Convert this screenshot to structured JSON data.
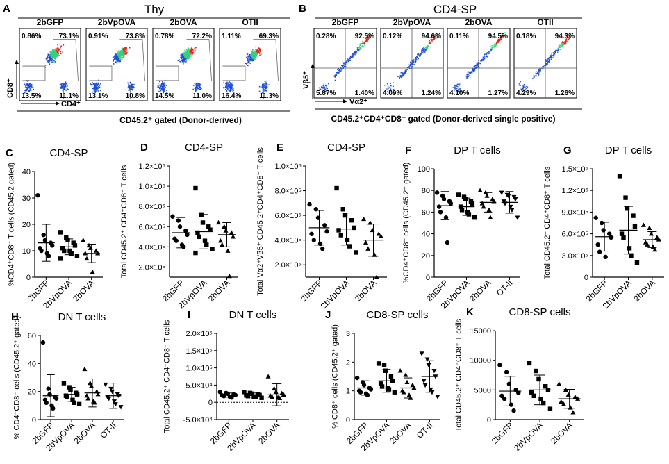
{
  "figure": {
    "panel_A": {
      "letter": "A",
      "title": "Thy",
      "gate": "CD45.2⁺ gated (Donor-derived)",
      "y_axis_label": "CD8⁺",
      "x_axis_label": "CD4⁺",
      "plots": [
        {
          "name": "2bGFP",
          "tl": "0.86%",
          "tr": "73.1%",
          "bl": "13.5%",
          "br": "11.1%"
        },
        {
          "name": "2bVpOVA",
          "tl": "0.91%",
          "tr": "73.8%",
          "bl": "13.1%",
          "br": "10.8%"
        },
        {
          "name": "2bOVA",
          "tl": "0.78%",
          "tr": "72.2%",
          "bl": "14.5%",
          "br": "11.0%"
        },
        {
          "name": "OTII",
          "tl": "1.11%",
          "tr": "69.3%",
          "bl": "16.4%",
          "br": "11.3%"
        }
      ]
    },
    "panel_B": {
      "letter": "B",
      "title": "CD4-SP",
      "gate": "CD45.2⁺CD4⁺CD8⁻ gated (Donor-derived single positive)",
      "y_axis_label": "Vβ5⁺",
      "x_axis_label": "Vα2⁺",
      "plots": [
        {
          "name": "2bGFP",
          "tl": "0.28%",
          "tr": "92.5%",
          "bl": "5.87%",
          "br": "1.40%"
        },
        {
          "name": "2bVpOVA",
          "tl": "0.12%",
          "tr": "94.6%",
          "bl": "4.09%",
          "br": "1.24%"
        },
        {
          "name": "2bOVA",
          "tl": "0.11%",
          "tr": "94.5%",
          "bl": "4.10%",
          "br": "1.27%"
        },
        {
          "name": "OTII",
          "tl": "0.18%",
          "tr": "94.3%",
          "bl": "4.29%",
          "br": "1.26%"
        }
      ]
    }
  },
  "colors": {
    "flow_hot": "#e8201a",
    "flow_mid": "#35d07a",
    "flow_cold": "#1f4fd8",
    "ink": "#000000"
  },
  "chart_data": [
    {
      "letter": "C",
      "type": "scatter",
      "title": "CD4-SP",
      "ylabel": "%CD4⁺CD8⁻ T cells (CD45.2 gated)",
      "ylim": [
        0,
        40
      ],
      "ticks": [
        "0",
        "10",
        "20",
        "30",
        "40"
      ],
      "tick_values": [
        0,
        10,
        20,
        30,
        40
      ],
      "categories": [
        "2bGFP",
        "2bVpOVA",
        "2bOVA"
      ],
      "markers": [
        "circle",
        "square",
        "triangle"
      ],
      "series": [
        {
          "name": "2bGFP",
          "values": [
            31,
            16,
            14,
            13,
            12,
            11,
            10,
            9,
            8
          ],
          "mean": 13,
          "sd": 7
        },
        {
          "name": "2bVpOVA",
          "values": [
            17,
            15,
            14,
            13,
            12,
            11,
            10,
            10,
            9,
            8,
            7
          ],
          "mean": 11.5,
          "sd": 3
        },
        {
          "name": "2bOVA",
          "values": [
            14,
            12,
            11,
            10,
            9,
            9,
            7,
            2
          ],
          "mean": 9,
          "sd": 3.5
        }
      ]
    },
    {
      "letter": "D",
      "type": "scatter",
      "title": "CD4-SP",
      "ylabel": "Total CD45.2⁺ CD4⁺CD8⁻ T cells",
      "ylim": [
        100000,
        1200000
      ],
      "ticks": [
        "2.0×10⁵",
        "4.0×10⁵",
        "6.0×10⁵",
        "8.0×10⁵",
        "1.0×10⁶",
        "1.2×10⁶"
      ],
      "tick_values": [
        200000,
        400000,
        600000,
        800000,
        1000000,
        1200000
      ],
      "categories": [
        "2bGFP",
        "2bVpOVA",
        "2bOVA"
      ],
      "markers": [
        "circle",
        "square",
        "triangle"
      ],
      "series": [
        {
          "name": "2bGFP",
          "values": [
            700000,
            660000,
            600000,
            560000,
            520000,
            480000,
            460000,
            420000,
            400000
          ],
          "mean": 540000,
          "sd": 150000
        },
        {
          "name": "2bVpOVA",
          "values": [
            980000,
            720000,
            640000,
            600000,
            570000,
            540000,
            500000,
            460000,
            420000,
            380000,
            340000
          ],
          "mean": 550000,
          "sd": 170000
        },
        {
          "name": "2bOVA",
          "values": [
            640000,
            600000,
            560000,
            540000,
            500000,
            460000,
            420000,
            360000,
            110000
          ],
          "mean": 520000,
          "sd": 120000
        }
      ]
    },
    {
      "letter": "E",
      "type": "scatter",
      "title": "CD4-SP",
      "ylabel": "Total Vα2⁺Vβ5⁺ CD45.2⁺CD4⁺CD8⁻ T cells",
      "ylim": [
        100000,
        1000000
      ],
      "ticks": [
        "2.0×10⁵",
        "4.0×10⁵",
        "6.0×10⁵",
        "8.0×10⁵",
        "1.0×10⁶"
      ],
      "tick_values": [
        200000,
        400000,
        600000,
        800000,
        1000000
      ],
      "categories": [
        "2bGFP",
        "2bVpOVA",
        "2bOVA"
      ],
      "markers": [
        "circle",
        "square",
        "triangle"
      ],
      "series": [
        {
          "name": "2bGFP",
          "values": [
            690000,
            650000,
            580000,
            520000,
            470000,
            450000,
            400000,
            370000,
            330000
          ],
          "mean": 500000,
          "sd": 140000
        },
        {
          "name": "2bVpOVA",
          "values": [
            820000,
            650000,
            600000,
            560000,
            500000,
            480000,
            440000,
            400000,
            350000,
            300000
          ],
          "mean": 490000,
          "sd": 130000
        },
        {
          "name": "2bOVA",
          "values": [
            570000,
            540000,
            480000,
            450000,
            430000,
            380000,
            330000,
            280000,
            100000
          ],
          "mean": 400000,
          "sd": 130000
        }
      ]
    },
    {
      "letter": "F",
      "type": "scatter",
      "title": "DP T cells",
      "ylabel": "%CD4⁺CD8⁺ cells (CD45.2⁺ gated)",
      "ylim": [
        0,
        100
      ],
      "ticks": [
        "0",
        "20",
        "40",
        "60",
        "80",
        "100"
      ],
      "tick_values": [
        0,
        20,
        40,
        60,
        80,
        100
      ],
      "categories": [
        "2bGFP",
        "2bVpOVA",
        "2bOVA",
        "OT-II"
      ],
      "markers": [
        "circle",
        "square",
        "triangle",
        "invtriangle"
      ],
      "series": [
        {
          "name": "2bGFP",
          "values": [
            78,
            75,
            72,
            70,
            68,
            65,
            60,
            55,
            32
          ],
          "mean": 66,
          "sd": 13
        },
        {
          "name": "2bVpOVA",
          "values": [
            76,
            74,
            72,
            70,
            68,
            65,
            62,
            60,
            58,
            55
          ],
          "mean": 65,
          "sd": 8
        },
        {
          "name": "2bOVA",
          "values": [
            80,
            78,
            75,
            72,
            70,
            68,
            65,
            62,
            55
          ],
          "mean": 69,
          "sd": 9
        },
        {
          "name": "OT-II",
          "values": [
            78,
            76,
            75,
            74,
            72,
            70,
            68,
            65,
            62,
            55
          ],
          "mean": 69,
          "sd": 10
        }
      ]
    },
    {
      "letter": "G",
      "type": "scatter",
      "title": "DP T cells",
      "ylabel": "Total CD45.2⁺ CD4⁺CD8⁺ T cells",
      "ylim": [
        0,
        1500000
      ],
      "ticks": [
        "0",
        "3.0×10⁵",
        "6.0×10⁵",
        "9.0×10⁵",
        "1.2×10⁶",
        "1.5×10⁶"
      ],
      "tick_values": [
        0,
        300000,
        600000,
        900000,
        1200000,
        1500000
      ],
      "categories": [
        "2bGFP",
        "2bVpOVA",
        "2bOVA"
      ],
      "markers": [
        "circle",
        "square",
        "triangle"
      ],
      "series": [
        {
          "name": "2bGFP",
          "values": [
            820000,
            750000,
            650000,
            600000,
            550000,
            450000,
            350000,
            280000
          ],
          "mean": 560000,
          "sd": 200000
        },
        {
          "name": "2bVpOVA",
          "values": [
            1400000,
            1100000,
            950000,
            850000,
            700000,
            600000,
            550000,
            400000,
            300000,
            200000
          ],
          "mean": 650000,
          "sd": 330000
        },
        {
          "name": "2bOVA",
          "values": [
            720000,
            680000,
            600000,
            550000,
            520000,
            480000,
            450000,
            420000,
            380000
          ],
          "mean": 520000,
          "sd": 110000
        }
      ]
    },
    {
      "letter": "H",
      "type": "scatter",
      "title": "DN T cells",
      "ylabel": "% CD4⁻CD8⁻ cells (CD45.2⁺ gated)",
      "ylim": [
        0,
        60
      ],
      "ticks": [
        "0",
        "20",
        "40",
        "60"
      ],
      "tick_values": [
        0,
        20,
        40,
        60
      ],
      "categories": [
        "2bGFP",
        "2bVpOVA",
        "2bOVA",
        "OT-II"
      ],
      "markers": [
        "circle",
        "square",
        "triangle",
        "invtriangle"
      ],
      "series": [
        {
          "name": "2bGFP",
          "values": [
            55,
            22,
            18,
            16,
            15,
            14,
            12,
            10,
            8
          ],
          "mean": 17,
          "sd": 15
        },
        {
          "name": "2bVpOVA",
          "values": [
            26,
            23,
            21,
            19,
            18,
            17,
            16,
            14,
            12,
            11
          ],
          "mean": 18,
          "sd": 5
        },
        {
          "name": "2bOVA",
          "values": [
            36,
            26,
            24,
            20,
            18,
            17,
            15,
            13,
            12
          ],
          "mean": 19,
          "sd": 10
        },
        {
          "name": "OT-II",
          "values": [
            25,
            22,
            20,
            18,
            17,
            16,
            15,
            13,
            11,
            9
          ],
          "mean": 17,
          "sd": 9
        }
      ]
    },
    {
      "letter": "I",
      "type": "scatter",
      "title": "DN T cells",
      "ylabel": "Total CD45.2⁺ CD4⁻CD8⁻ T cells",
      "ylim": [
        -50000,
        200000
      ],
      "ticks": [
        "-5.0×10⁴",
        "0",
        "5.0×10⁴",
        "1.0×10⁵",
        "1.5×10⁵",
        "2.0×10⁵"
      ],
      "tick_values": [
        -50000,
        0,
        50000,
        100000,
        150000,
        200000
      ],
      "zero_line": true,
      "categories": [
        "2bGFP",
        "2bVpOVA",
        "2bOVA"
      ],
      "markers": [
        "circle",
        "square",
        "triangle"
      ],
      "series": [
        {
          "name": "2bGFP",
          "values": [
            30000,
            27000,
            25000,
            23000,
            21000,
            20000,
            18000,
            16000,
            14000
          ],
          "mean": 21000,
          "sd": 6000
        },
        {
          "name": "2bVpOVA",
          "values": [
            30000,
            27000,
            25000,
            23000,
            21000,
            20000,
            18000,
            17000,
            15000,
            13000
          ],
          "mean": 21000,
          "sd": 6000
        },
        {
          "name": "2bOVA",
          "values": [
            75000,
            40000,
            30000,
            26000,
            22000,
            19000,
            16000,
            14000,
            12000
          ],
          "mean": 22000,
          "sd": 32000
        }
      ]
    },
    {
      "letter": "J",
      "type": "scatter",
      "title": "CD8-SP cells",
      "ylabel": "% CD8⁺ cells (CD45.2⁺ gated)",
      "ylim": [
        0,
        3
      ],
      "ticks": [
        "0",
        "1",
        "2",
        "3"
      ],
      "tick_values": [
        0,
        1,
        2,
        3
      ],
      "categories": [
        "2bGFP",
        "2bVpOVA",
        "2bOVA",
        "OT-II"
      ],
      "markers": [
        "circle",
        "square",
        "triangle",
        "invtriangle"
      ],
      "series": [
        {
          "name": "2bGFP",
          "values": [
            1.45,
            1.3,
            1.2,
            1.1,
            1.05,
            1.0,
            0.95,
            0.9,
            0.85
          ],
          "mean": 1.1,
          "sd": 0.25
        },
        {
          "name": "2bVpOVA",
          "values": [
            1.95,
            1.9,
            1.7,
            1.5,
            1.35,
            1.25,
            1.15,
            1.1,
            1.05,
            0.95
          ],
          "mean": 1.35,
          "sd": 0.4
        },
        {
          "name": "2bOVA",
          "values": [
            1.7,
            1.55,
            1.3,
            1.2,
            1.1,
            1.0,
            0.95,
            0.85,
            0.75
          ],
          "mean": 1.1,
          "sd": 0.35
        },
        {
          "name": "OT-II",
          "values": [
            2.3,
            2.1,
            1.9,
            1.7,
            1.5,
            1.35,
            1.2,
            1.05,
            0.95,
            0.8
          ],
          "mean": 1.5,
          "sd": 0.55
        }
      ]
    },
    {
      "letter": "K",
      "type": "scatter",
      "title": "CD8-SP cells",
      "ylabel": "Total CD45.2⁺ CD4⁻CD8⁺ T cells",
      "ylim": [
        0,
        15000
      ],
      "ticks": [
        "0",
        "5000",
        "10000",
        "15000"
      ],
      "tick_values": [
        0,
        5000,
        10000,
        15000
      ],
      "categories": [
        "2bGFP",
        "2bVpOVA",
        "2bOVA"
      ],
      "markers": [
        "circle",
        "square",
        "triangle"
      ],
      "series": [
        {
          "name": "2bGFP",
          "values": [
            9200,
            8000,
            6000,
            5000,
            4500,
            4000,
            3500,
            2500,
            1500
          ],
          "mean": 4800,
          "sd": 2500
        },
        {
          "name": "2bVpOVA",
          "values": [
            9500,
            8200,
            6800,
            5600,
            5000,
            4600,
            4000,
            3500,
            2800,
            1800
          ],
          "mean": 5000,
          "sd": 2500
        },
        {
          "name": "2bOVA",
          "values": [
            6000,
            5000,
            4200,
            3800,
            3500,
            3000,
            2600,
            2000,
            1200
          ],
          "mean": 3500,
          "sd": 1600
        }
      ]
    }
  ]
}
